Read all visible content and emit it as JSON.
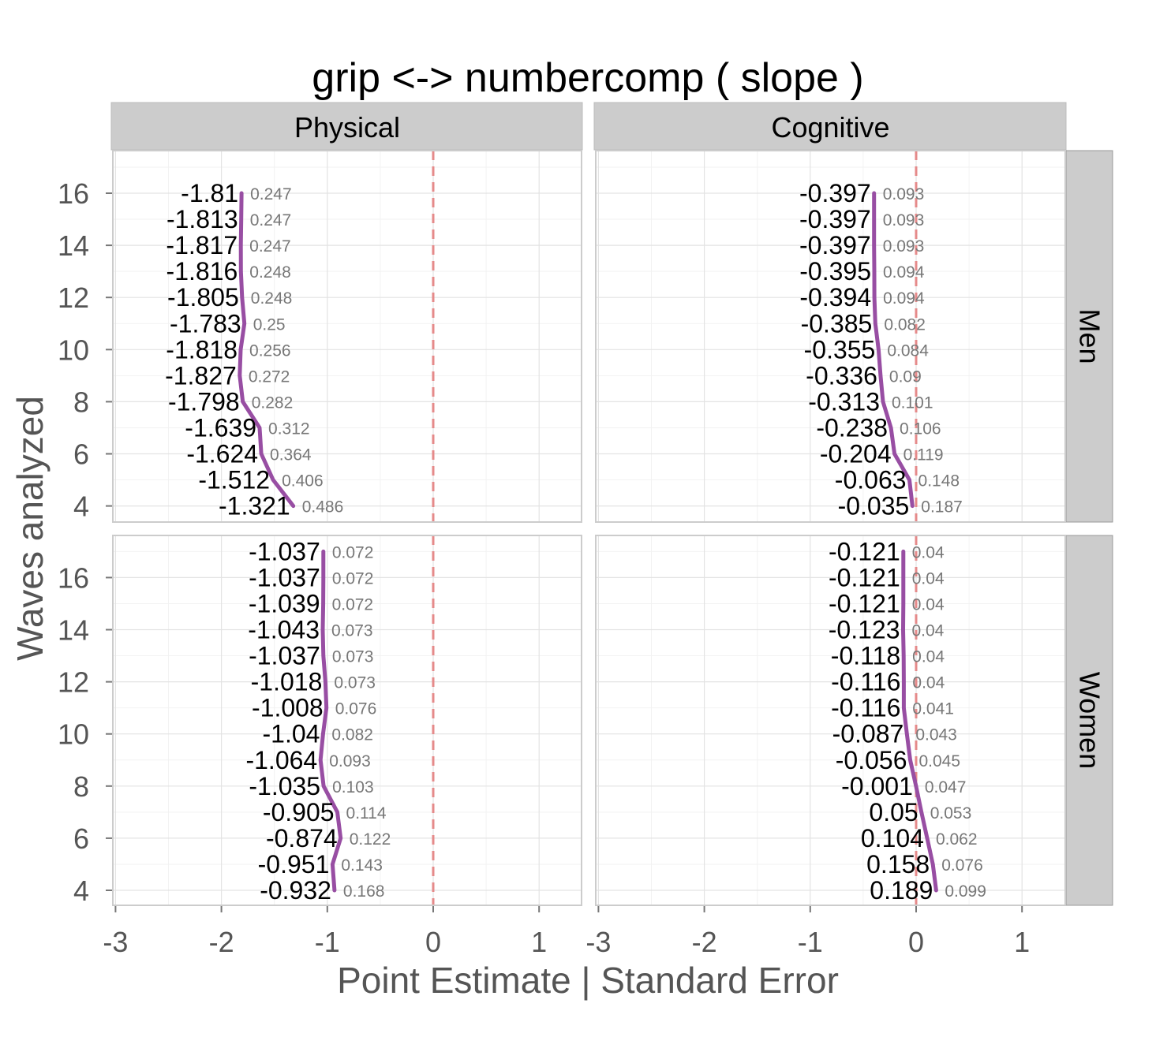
{
  "chart_data": {
    "type": "line",
    "title": "grip <-> numbercomp ( slope )",
    "xlabel": "Point Estimate | Standard Error",
    "ylabel": "Waves analyzed",
    "xlim": [
      -3.05,
      1.4
    ],
    "ylim": [
      3.5,
      17.5
    ],
    "x_ticks": [
      -3,
      -2,
      -1,
      0,
      1
    ],
    "x_tick_labels": [
      "-3",
      "-2",
      "-1",
      "0",
      "1"
    ],
    "y_ticks": [
      4,
      6,
      8,
      10,
      12,
      14,
      16
    ],
    "y_tick_labels": [
      "4",
      "6",
      "8",
      "10",
      "12",
      "14",
      "16"
    ],
    "reference_line_x": 0,
    "grid": true,
    "line_color": "#984EA3",
    "reference_color": "#E58A8A",
    "columns": [
      "Physical",
      "Cognitive"
    ],
    "rows": [
      "Men",
      "Women"
    ],
    "panels": [
      {
        "column": "Physical",
        "row": "Men",
        "waves": [
          16,
          15,
          14,
          13,
          12,
          11,
          10,
          9,
          8,
          7,
          6,
          5,
          4
        ],
        "estimates": [
          -1.81,
          -1.813,
          -1.817,
          -1.816,
          -1.805,
          -1.783,
          -1.818,
          -1.827,
          -1.798,
          -1.639,
          -1.624,
          -1.512,
          -1.321
        ],
        "estimate_labels": [
          "-1.81",
          "-1.813",
          "-1.817",
          "-1.816",
          "-1.805",
          "-1.783",
          "-1.818",
          "-1.827",
          "-1.798",
          "-1.639",
          "-1.624",
          "-1.512",
          "-1.321"
        ],
        "standard_errors": [
          "0.247",
          "0.247",
          "0.247",
          "0.248",
          "0.248",
          "0.25",
          "0.256",
          "0.272",
          "0.282",
          "0.312",
          "0.364",
          "0.406",
          "0.486"
        ]
      },
      {
        "column": "Cognitive",
        "row": "Men",
        "waves": [
          16,
          15,
          14,
          13,
          12,
          11,
          10,
          9,
          8,
          7,
          6,
          5,
          4
        ],
        "estimates": [
          -0.397,
          -0.397,
          -0.397,
          -0.395,
          -0.394,
          -0.385,
          -0.355,
          -0.336,
          -0.313,
          -0.238,
          -0.204,
          -0.063,
          -0.035
        ],
        "estimate_labels": [
          "-0.397",
          "-0.397",
          "-0.397",
          "-0.395",
          "-0.394",
          "-0.385",
          "-0.355",
          "-0.336",
          "-0.313",
          "-0.238",
          "-0.204",
          "-0.063",
          "-0.035"
        ],
        "standard_errors": [
          "0.093",
          "0.093",
          "0.093",
          "0.094",
          "0.094",
          "0.082",
          "0.084",
          "0.09",
          "0.101",
          "0.106",
          "0.119",
          "0.148",
          "0.187"
        ]
      },
      {
        "column": "Physical",
        "row": "Women",
        "waves": [
          17,
          16,
          15,
          14,
          13,
          12,
          11,
          10,
          9,
          8,
          7,
          6,
          5,
          4
        ],
        "estimates": [
          -1.037,
          -1.037,
          -1.039,
          -1.043,
          -1.037,
          -1.018,
          -1.008,
          -1.04,
          -1.064,
          -1.035,
          -0.905,
          -0.874,
          -0.951,
          -0.932
        ],
        "estimate_labels": [
          "-1.037",
          "-1.037",
          "-1.039",
          "-1.043",
          "-1.037",
          "-1.018",
          "-1.008",
          "-1.04",
          "-1.064",
          "-1.035",
          "-0.905",
          "-0.874",
          "-0.951",
          "-0.932"
        ],
        "standard_errors": [
          "0.072",
          "0.072",
          "0.072",
          "0.073",
          "0.073",
          "0.073",
          "0.076",
          "0.082",
          "0.093",
          "0.103",
          "0.114",
          "0.122",
          "0.143",
          "0.168"
        ]
      },
      {
        "column": "Cognitive",
        "row": "Women",
        "waves": [
          17,
          16,
          15,
          14,
          13,
          12,
          11,
          10,
          9,
          8,
          7,
          6,
          5,
          4
        ],
        "estimates": [
          -0.121,
          -0.121,
          -0.121,
          -0.123,
          -0.118,
          -0.116,
          -0.116,
          -0.087,
          -0.056,
          -0.001,
          0.05,
          0.104,
          0.158,
          0.189
        ],
        "estimate_labels": [
          "-0.121",
          "-0.121",
          "-0.121",
          "-0.123",
          "-0.118",
          "-0.116",
          "-0.116",
          "-0.087",
          "-0.056",
          "-0.001",
          "0.05",
          "0.104",
          "0.158",
          "0.189"
        ],
        "standard_errors": [
          "0.04",
          "0.04",
          "0.04",
          "0.04",
          "0.04",
          "0.04",
          "0.041",
          "0.043",
          "0.045",
          "0.047",
          "0.053",
          "0.062",
          "0.076",
          "0.099"
        ]
      }
    ]
  }
}
